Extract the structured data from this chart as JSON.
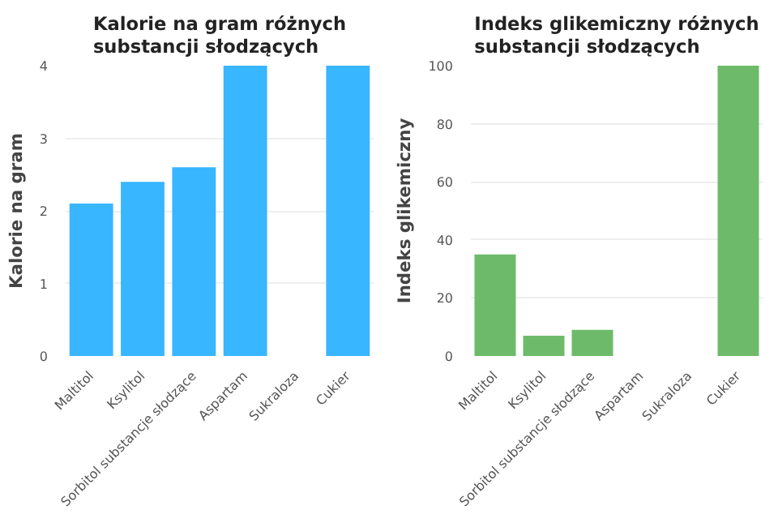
{
  "chart_data": [
    {
      "type": "bar",
      "title": "Kalorie na gram różnych substancji słodzących",
      "ylabel": "Kalorie na gram",
      "categories": [
        "Maltitol",
        "Ksylitol",
        "Sorbitol substancje słodzące",
        "Aspartam",
        "Sukraloza",
        "Cukier"
      ],
      "values": [
        2.1,
        2.4,
        2.6,
        4,
        0,
        4
      ],
      "color": "#38b6ff",
      "ylim": [
        0,
        4
      ],
      "yticks": [
        0,
        1,
        2,
        3,
        4
      ],
      "grid": "y"
    },
    {
      "type": "bar",
      "title": "Indeks glikemiczny różnych substancji słodzących",
      "ylabel": "Indeks glikemiczny",
      "categories": [
        "Maltitol",
        "Ksylitol",
        "Sorbitol substancje słodzące",
        "Aspartam",
        "Sukraloza",
        "Cukier"
      ],
      "values": [
        35,
        7,
        9,
        0,
        0,
        100
      ],
      "color": "#6dbb6a",
      "ylim": [
        0,
        100
      ],
      "yticks": [
        0,
        20,
        40,
        60,
        80,
        100
      ],
      "grid": "y"
    }
  ]
}
